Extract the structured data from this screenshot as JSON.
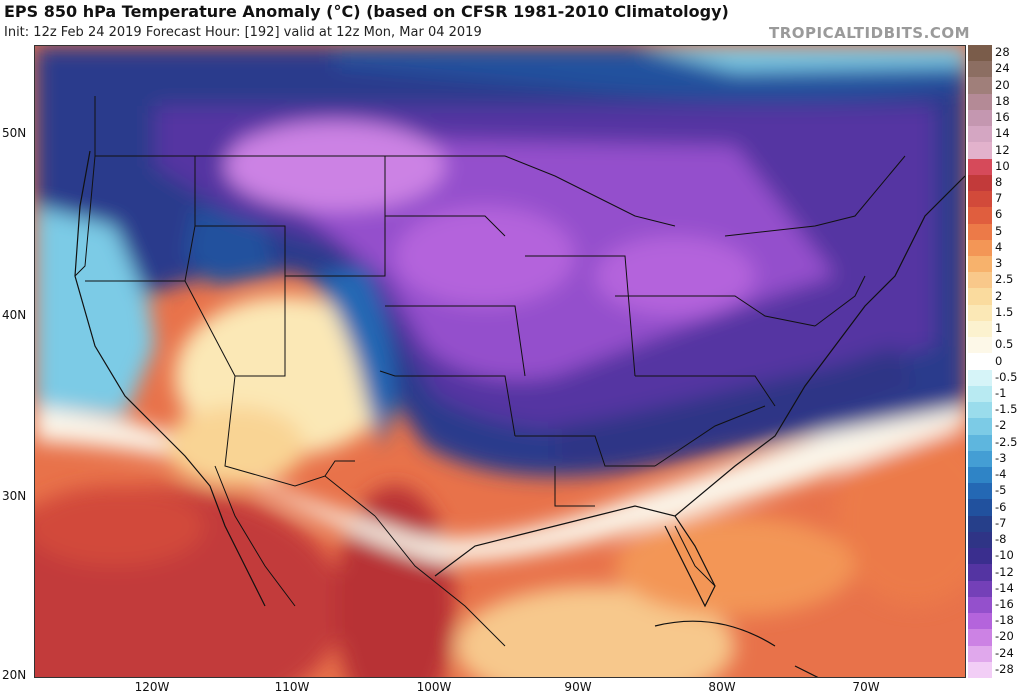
{
  "header": {
    "title": "EPS 850 hPa Temperature Anomaly (°C) (based on CFSR 1981-2010 Climatology)",
    "subtitle": "Init: 12z Feb 24 2019   Forecast Hour: [192]   valid at 12z Mon, Mar 04 2019",
    "brand": "TROPICALTIDBITS.COM"
  },
  "map": {
    "lat_labels": [
      "50N",
      "40N",
      "30N",
      "20N"
    ],
    "lon_labels": [
      "120W",
      "110W",
      "100W",
      "90W",
      "80W",
      "70W"
    ]
  },
  "colorbar": {
    "levels": [
      "28",
      "24",
      "20",
      "18",
      "16",
      "14",
      "12",
      "10",
      "8",
      "7",
      "6",
      "5",
      "4",
      "3",
      "2.5",
      "2",
      "1.5",
      "1",
      "0.5",
      "0",
      "-0.5",
      "-1",
      "-1.5",
      "-2",
      "-2.5",
      "-3",
      "-4",
      "-5",
      "-6",
      "-7",
      "-8",
      "-10",
      "-12",
      "-14",
      "-16",
      "-18",
      "-20",
      "-24",
      "-28"
    ],
    "colors": [
      "#7a5c4a",
      "#8c6e62",
      "#a07f7a",
      "#b48a96",
      "#c497b0",
      "#d4a6c2",
      "#e2b2cc",
      "#d64a5a",
      "#c23a3a",
      "#d24a3a",
      "#e05e3e",
      "#ec7a48",
      "#f39656",
      "#f7b26c",
      "#f9c88a",
      "#fadb9e",
      "#fbe8b6",
      "#fcf2cf",
      "#fdf8e8",
      "#ffffff",
      "#d6f4f8",
      "#b8eaf2",
      "#9adcec",
      "#7ccbe6",
      "#5eb6de",
      "#449ed4",
      "#2f84c6",
      "#2468b4",
      "#21519e",
      "#263f8a",
      "#2f3486",
      "#3a2e8e",
      "#5434a2",
      "#7440b8",
      "#9450cc",
      "#b464dc",
      "#cc82e4",
      "#e0a8ec",
      "#f2cef6"
    ]
  }
}
